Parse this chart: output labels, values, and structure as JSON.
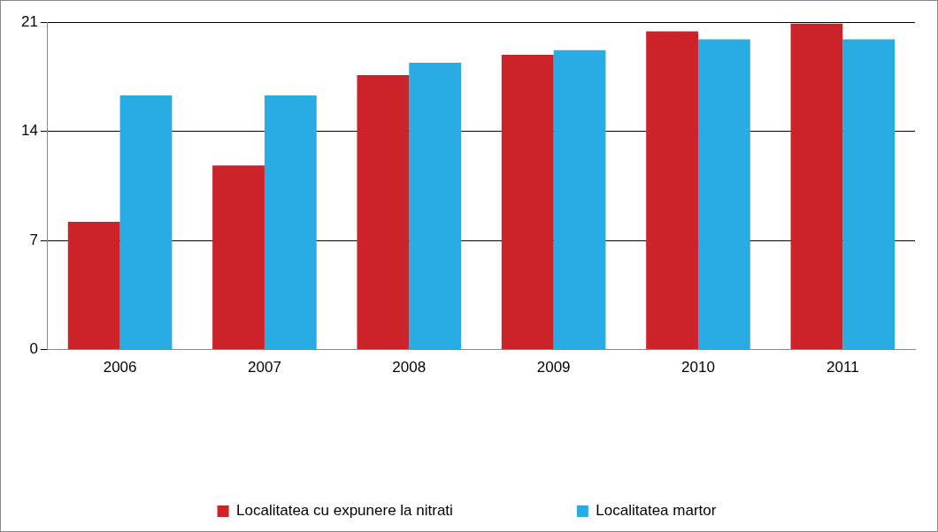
{
  "chart_data": {
    "type": "bar",
    "categories": [
      "2006",
      "2007",
      "2008",
      "2009",
      "2010",
      "2011"
    ],
    "series": [
      {
        "name": "Localitatea cu expunere la nitrati",
        "color": "#cc2229",
        "values": [
          8.2,
          11.8,
          17.6,
          18.9,
          20.4,
          20.9
        ]
      },
      {
        "name": "Localitatea martor",
        "color": "#29ace3",
        "values": [
          16.3,
          16.3,
          18.4,
          19.2,
          19.9,
          19.9
        ]
      }
    ],
    "ylim": [
      0,
      21
    ],
    "yticks": [
      0,
      7,
      14,
      21
    ],
    "grid": "y",
    "legend": "bottom"
  }
}
